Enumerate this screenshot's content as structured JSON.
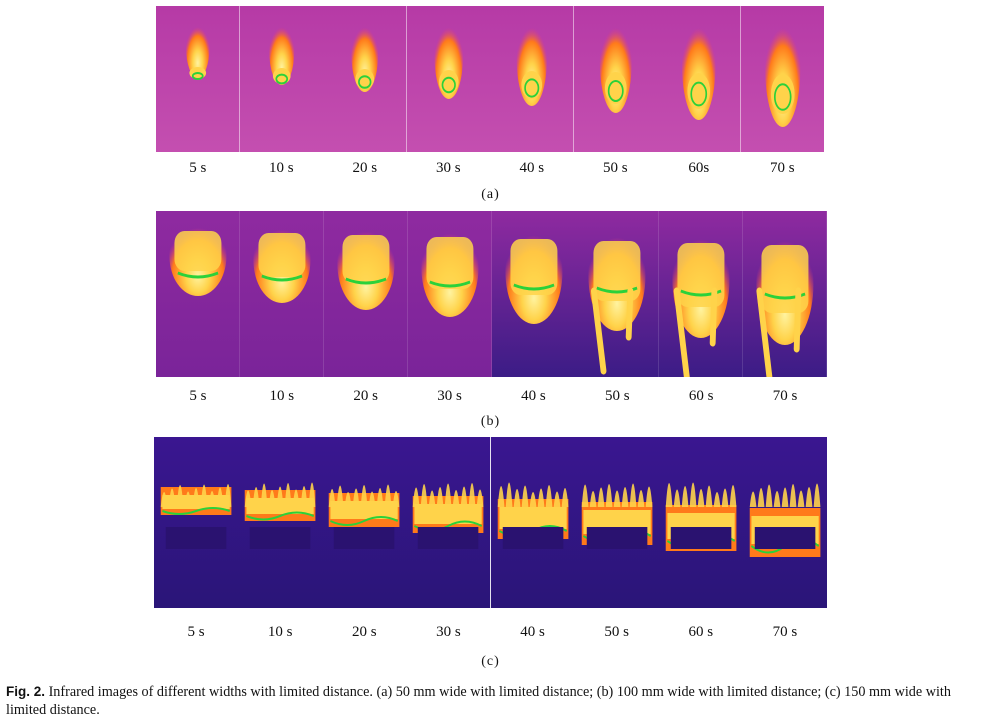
{
  "panels": [
    {
      "id": "a",
      "letter": "(a)",
      "times": [
        "5 s",
        "10 s",
        "20 s",
        "30 s",
        "40 s",
        "50 s",
        "60s",
        "70 s"
      ]
    },
    {
      "id": "b",
      "letter": "(b)",
      "times": [
        "5 s",
        "10 s",
        "20 s",
        "30 s",
        "40 s",
        "50 s",
        "60 s",
        "70 s"
      ]
    },
    {
      "id": "c",
      "letter": "(c)",
      "times": [
        "5 s",
        "10 s",
        "20 s",
        "30 s",
        "40 s",
        "50 s",
        "60 s",
        "70 s"
      ]
    }
  ],
  "caption": {
    "label": "Fig. 2.",
    "text": "Infrared images of different widths with limited distance. (a) 50 mm wide with limited distance; (b) 100 mm wide with limited distance; (c) 150 mm wide with limited distance."
  },
  "colors": {
    "bg_a": "#b63aa6",
    "bg_b_top": "#8f2aa0",
    "bg_b_bottom": "#3b1c86",
    "bg_c": "#3a1690",
    "hot": "#ffd34a",
    "warm": "#ff7a1a",
    "contour": "#2bd13a"
  }
}
